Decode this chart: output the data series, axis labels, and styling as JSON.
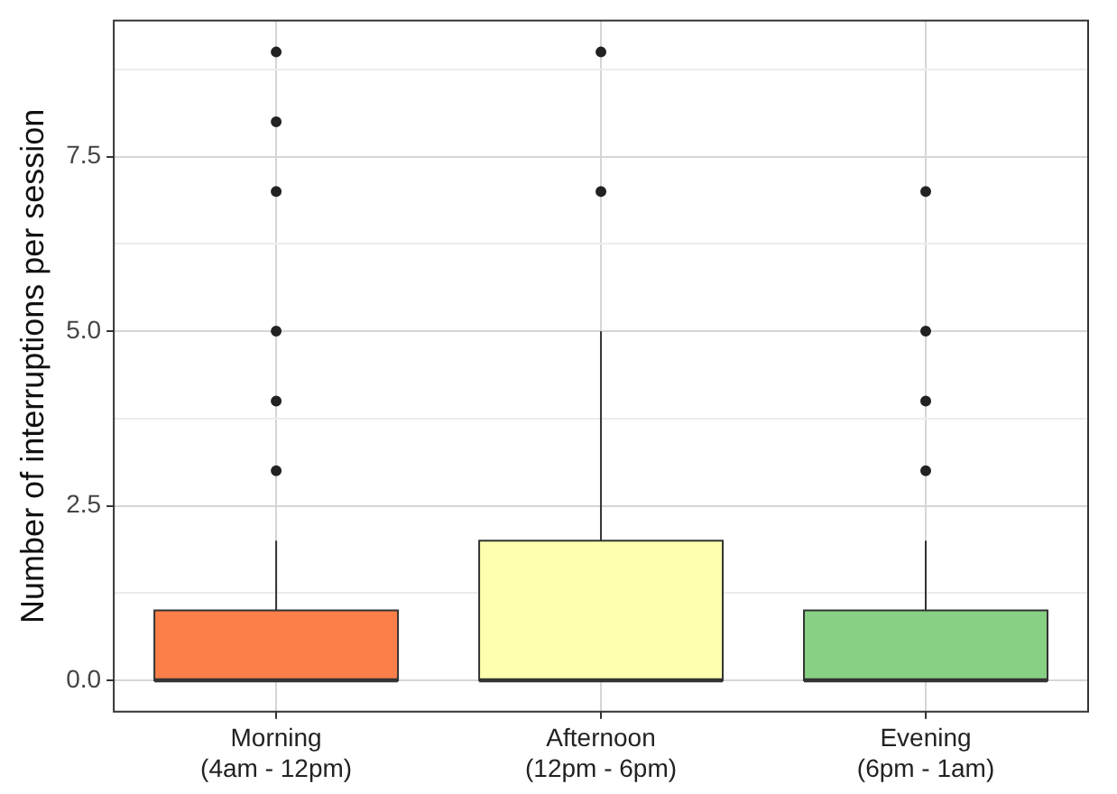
{
  "chart_data": {
    "type": "box",
    "ylabel": "Number of interruptions per session",
    "categories": [
      "Morning\n(4am - 12pm)",
      "Afternoon\n(12pm - 6pm)",
      "Evening\n(6pm - 1am)"
    ],
    "colors": [
      "#fc7f4a",
      "#ffffb0",
      "#88d083"
    ],
    "boxes": [
      {
        "low": 0,
        "q1": 0,
        "median": 0,
        "q3": 1,
        "high": 2,
        "outliers": [
          3,
          4,
          5,
          7,
          8,
          9
        ]
      },
      {
        "low": 0,
        "q1": 0,
        "median": 0,
        "q3": 2,
        "high": 5,
        "outliers": [
          7,
          9
        ]
      },
      {
        "low": 0,
        "q1": 0,
        "median": 0,
        "q3": 1,
        "high": 2,
        "outliers": [
          3,
          4,
          5,
          7
        ]
      }
    ],
    "ylim": [
      -0.45,
      9.45
    ],
    "yticks": [
      {
        "value": 0,
        "label": "0.0"
      },
      {
        "value": 1.25,
        "label": null
      },
      {
        "value": 2.5,
        "label": "2.5"
      },
      {
        "value": 3.75,
        "label": null
      },
      {
        "value": 5,
        "label": "5.0"
      },
      {
        "value": 6.25,
        "label": null
      },
      {
        "value": 7.5,
        "label": "7.5"
      },
      {
        "value": 8.75,
        "label": null
      }
    ],
    "grid": true,
    "legend": false,
    "marker": "circle"
  }
}
